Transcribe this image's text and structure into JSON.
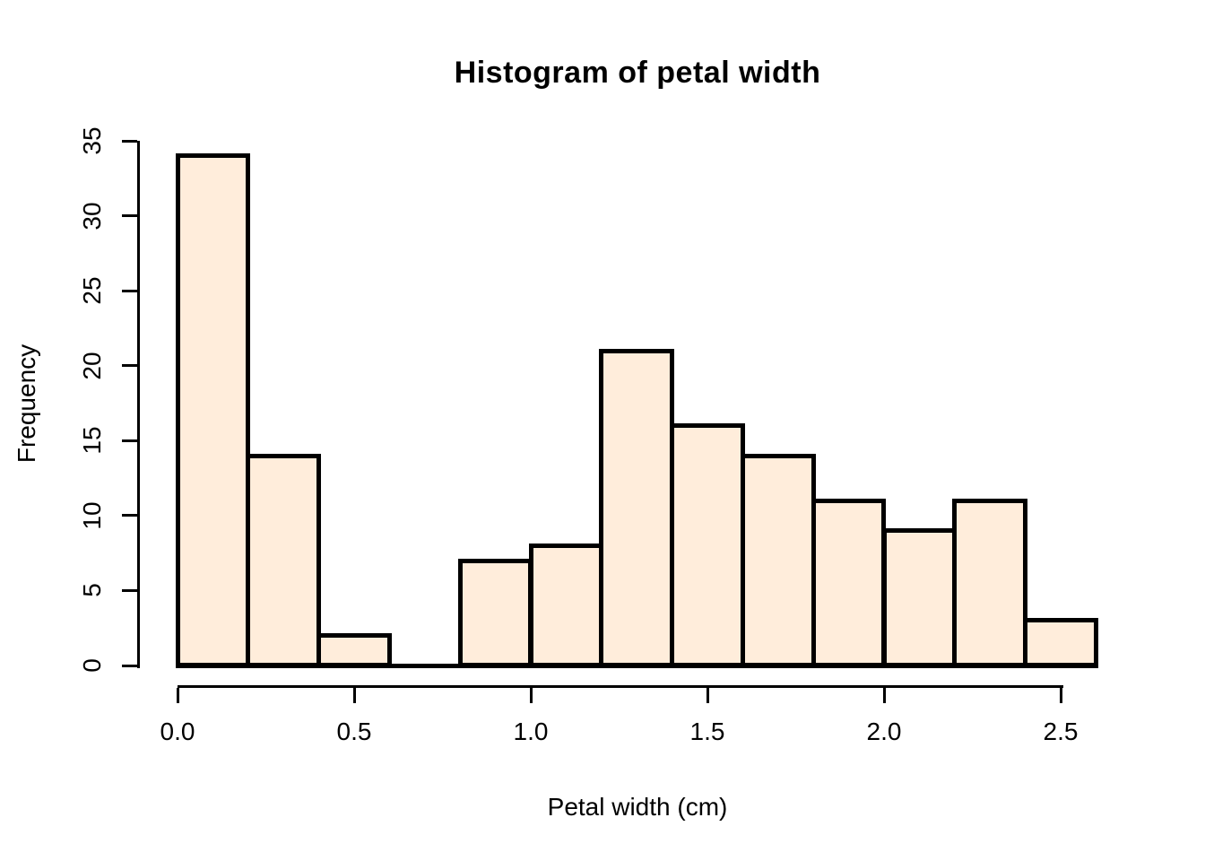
{
  "title": "Histogram of petal width",
  "chart_data": {
    "type": "bar",
    "subtype": "histogram",
    "title": "Histogram of petal width",
    "xlabel": "Petal width (cm)",
    "ylabel": "Frequency",
    "bin_edges": [
      0.0,
      0.2,
      0.4,
      0.6,
      0.8,
      1.0,
      1.2,
      1.4,
      1.6,
      1.8,
      2.0,
      2.2,
      2.4,
      2.6
    ],
    "values": [
      34,
      14,
      2,
      0,
      7,
      8,
      21,
      16,
      14,
      11,
      9,
      11,
      3
    ],
    "total_count": 150,
    "x_ticks": [
      0.0,
      0.5,
      1.0,
      1.5,
      2.0,
      2.5
    ],
    "x_tick_labels": [
      "0.0",
      "0.5",
      "1.0",
      "1.5",
      "2.0",
      "2.5"
    ],
    "y_ticks": [
      0,
      5,
      10,
      15,
      20,
      25,
      30,
      35
    ],
    "y_tick_labels": [
      "0",
      "5",
      "10",
      "15",
      "20",
      "25",
      "30",
      "35"
    ],
    "xlim": [
      0.0,
      2.6
    ],
    "ylim": [
      0,
      35
    ],
    "grid": false,
    "legend": null,
    "colors": {
      "bar_fill": "#FFEDDB",
      "bar_border": "#000000",
      "axis": "#000000",
      "text": "#000000",
      "background": "#FFFFFF"
    }
  }
}
